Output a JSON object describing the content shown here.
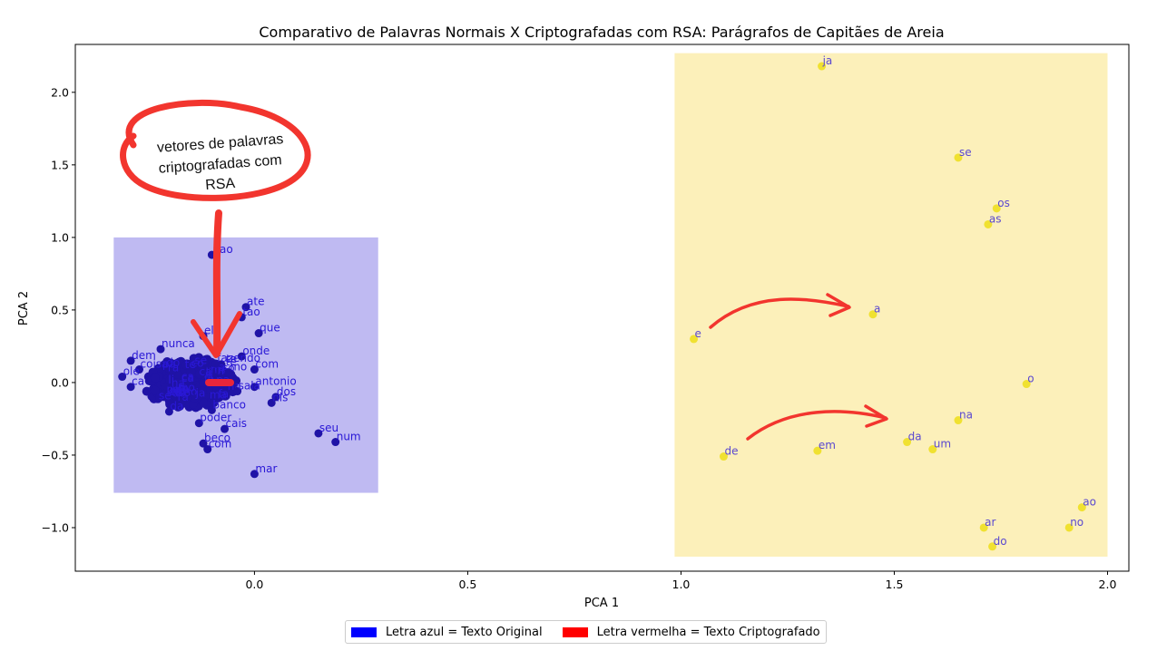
{
  "chart_data": {
    "type": "scatter",
    "title": "Comparativo de Palavras Normais X Criptografadas com RSA: Parágrafos de Capitães de Areia",
    "xlabel": "PCA 1",
    "ylabel": "PCA 2",
    "xlim": [
      -0.42,
      2.05
    ],
    "ylim": [
      -1.3,
      2.33
    ],
    "xticks": [
      "0.0",
      "0.5",
      "1.0",
      "1.5",
      "2.0"
    ],
    "xtick_values": [
      0.0,
      0.5,
      1.0,
      1.5,
      2.0
    ],
    "yticks": [
      "−1.0",
      "−0.5",
      "0.0",
      "0.5",
      "1.0",
      "1.5",
      "2.0"
    ],
    "ytick_values": [
      -1.0,
      -0.5,
      0.0,
      0.5,
      1.0,
      1.5,
      2.0
    ],
    "grid": false,
    "legend_position": "bottom-center",
    "regions": [
      {
        "name": "original",
        "x0": -0.33,
        "x1": 0.29,
        "y0": -0.76,
        "y1": 1.0,
        "color": "#bfbaf2"
      },
      {
        "name": "encrypted",
        "x0": 0.985,
        "x1": 2.0,
        "y0": -1.2,
        "y1": 2.27,
        "color": "#fcf0ba"
      }
    ],
    "series": [
      {
        "name": "Letra azul = Texto Original",
        "color": "#1f13a6",
        "label_color": "#2a18d6",
        "points": [
          {
            "label": "nao",
            "x": -0.1,
            "y": 0.88
          },
          {
            "label": "ate",
            "x": -0.02,
            "y": 0.52
          },
          {
            "label": "tao",
            "x": -0.03,
            "y": 0.45
          },
          {
            "label": "que",
            "x": 0.01,
            "y": 0.34
          },
          {
            "label": "onde",
            "x": -0.03,
            "y": 0.18
          },
          {
            "label": "nunca",
            "x": -0.22,
            "y": 0.23
          },
          {
            "label": "ele",
            "x": -0.12,
            "y": 0.32
          },
          {
            "label": "com",
            "x": -0.0,
            "y": 0.09
          },
          {
            "label": "dos",
            "x": 0.05,
            "y": -0.1
          },
          {
            "label": "nis",
            "x": 0.04,
            "y": -0.14
          },
          {
            "label": "antonio",
            "x": 0.0,
            "y": -0.03
          },
          {
            "label": "sala",
            "x": -0.04,
            "y": -0.06
          },
          {
            "label": "banco",
            "x": -0.1,
            "y": -0.19
          },
          {
            "label": "cais",
            "x": -0.07,
            "y": -0.32
          },
          {
            "label": "poder",
            "x": -0.13,
            "y": -0.28
          },
          {
            "label": "seu",
            "x": 0.15,
            "y": -0.35
          },
          {
            "label": "num",
            "x": 0.19,
            "y": -0.41
          },
          {
            "label": "beco",
            "x": -0.12,
            "y": -0.42
          },
          {
            "label": "com",
            "x": -0.11,
            "y": -0.46
          },
          {
            "label": "mar",
            "x": -0.0,
            "y": -0.63
          },
          {
            "label": "dem",
            "x": -0.29,
            "y": 0.15
          },
          {
            "label": "coisa",
            "x": -0.27,
            "y": 0.09
          },
          {
            "label": "ole",
            "x": -0.31,
            "y": 0.04
          },
          {
            "label": "ca",
            "x": -0.29,
            "y": -0.03
          },
          {
            "label": "da",
            "x": -0.2,
            "y": -0.2
          },
          {
            "label": "fazendo",
            "x": -0.09,
            "y": 0.13
          },
          {
            "label": "mo",
            "x": -0.06,
            "y": 0.07
          },
          {
            "label": "ja",
            "x": -0.14,
            "y": -0.11
          }
        ]
      },
      {
        "name": "Letra vermelha = Texto Criptografado",
        "color": "#f0e131",
        "label_color": "#5a48d0",
        "points": [
          {
            "label": "ja",
            "x": 1.33,
            "y": 2.18
          },
          {
            "label": "se",
            "x": 1.65,
            "y": 1.55
          },
          {
            "label": "os",
            "x": 1.74,
            "y": 1.2
          },
          {
            "label": "as",
            "x": 1.72,
            "y": 1.09
          },
          {
            "label": "a",
            "x": 1.45,
            "y": 0.47
          },
          {
            "label": "e",
            "x": 1.03,
            "y": 0.3
          },
          {
            "label": "o",
            "x": 1.81,
            "y": -0.01
          },
          {
            "label": "na",
            "x": 1.65,
            "y": -0.26
          },
          {
            "label": "da",
            "x": 1.53,
            "y": -0.41
          },
          {
            "label": "um",
            "x": 1.59,
            "y": -0.46
          },
          {
            "label": "em",
            "x": 1.32,
            "y": -0.47
          },
          {
            "label": "de",
            "x": 1.1,
            "y": -0.51
          },
          {
            "label": "ao",
            "x": 1.94,
            "y": -0.86
          },
          {
            "label": "ar",
            "x": 1.71,
            "y": -1.0
          },
          {
            "label": "no",
            "x": 1.91,
            "y": -1.0
          },
          {
            "label": "do",
            "x": 1.73,
            "y": -1.13
          }
        ]
      }
    ],
    "annotation": {
      "text_lines": [
        "vetores de palavras",
        "criptografadas com",
        "RSA"
      ],
      "color": "#f2352e"
    }
  },
  "legend": {
    "items": [
      {
        "label": "Letra azul = Texto Original",
        "color": "#0000ff"
      },
      {
        "label": "Letra vermelha = Texto Criptografado",
        "color": "#ff0000"
      }
    ]
  }
}
